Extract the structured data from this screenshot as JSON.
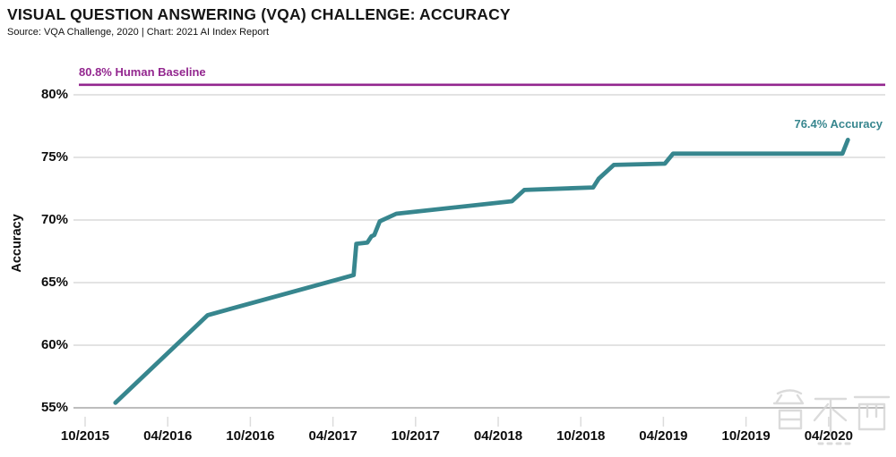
{
  "chart_data": {
    "type": "line",
    "title": "VISUAL QUESTION ANSWERING (VQA) CHALLENGE: ACCURACY",
    "subtitle": "Source: VQA Challenge, 2020 | Chart: 2021 AI Index Report",
    "ylabel": "Accuracy",
    "ylim": [
      53,
      82
    ],
    "grid": "horizontal",
    "legend_position": "none",
    "y_ticks": [
      {
        "label": "80%",
        "value": 80
      },
      {
        "label": "75%",
        "value": 75
      },
      {
        "label": "70%",
        "value": 70
      },
      {
        "label": "65%",
        "value": 65
      },
      {
        "label": "60%",
        "value": 60
      },
      {
        "label": "55%",
        "value": 55
      }
    ],
    "x_ticks": [
      {
        "label": "10/2015",
        "month": 0
      },
      {
        "label": "04/2016",
        "month": 6
      },
      {
        "label": "10/2016",
        "month": 12
      },
      {
        "label": "04/2017",
        "month": 18
      },
      {
        "label": "10/2017",
        "month": 24
      },
      {
        "label": "04/2018",
        "month": 30
      },
      {
        "label": "10/2018",
        "month": 36
      },
      {
        "label": "04/2019",
        "month": 42
      },
      {
        "label": "10/2019",
        "month": 48
      },
      {
        "label": "04/2020",
        "month": 54
      }
    ],
    "human_baseline": {
      "value": 80.8,
      "label": "80.8% Human Baseline",
      "color": "#93278f"
    },
    "annotation": {
      "value": 76.4,
      "label": "76.4% Accuracy",
      "color": "#37868e"
    },
    "series": [
      {
        "name": "VQA Challenge accuracy",
        "color": "#37868e",
        "x_unit": "months since 10/2015",
        "points": [
          [
            2.2,
            55.4
          ],
          [
            8.9,
            62.4
          ],
          [
            19.5,
            65.6
          ],
          [
            19.7,
            68.1
          ],
          [
            20.5,
            68.2
          ],
          [
            20.8,
            68.7
          ],
          [
            21.0,
            68.8
          ],
          [
            21.4,
            69.9
          ],
          [
            22.6,
            70.5
          ],
          [
            31.0,
            71.5
          ],
          [
            31.9,
            72.4
          ],
          [
            36.9,
            72.6
          ],
          [
            37.3,
            73.3
          ],
          [
            38.4,
            74.4
          ],
          [
            42.1,
            74.5
          ],
          [
            42.7,
            75.3
          ],
          [
            55.0,
            75.3
          ],
          [
            55.4,
            76.4
          ]
        ]
      }
    ],
    "colors": {
      "gridline": "#dadada",
      "bottom_axis": "#bdbdbd",
      "tick": "#dcdcdc"
    }
  },
  "watermark": {
    "text": "zhidongxi-logo"
  }
}
